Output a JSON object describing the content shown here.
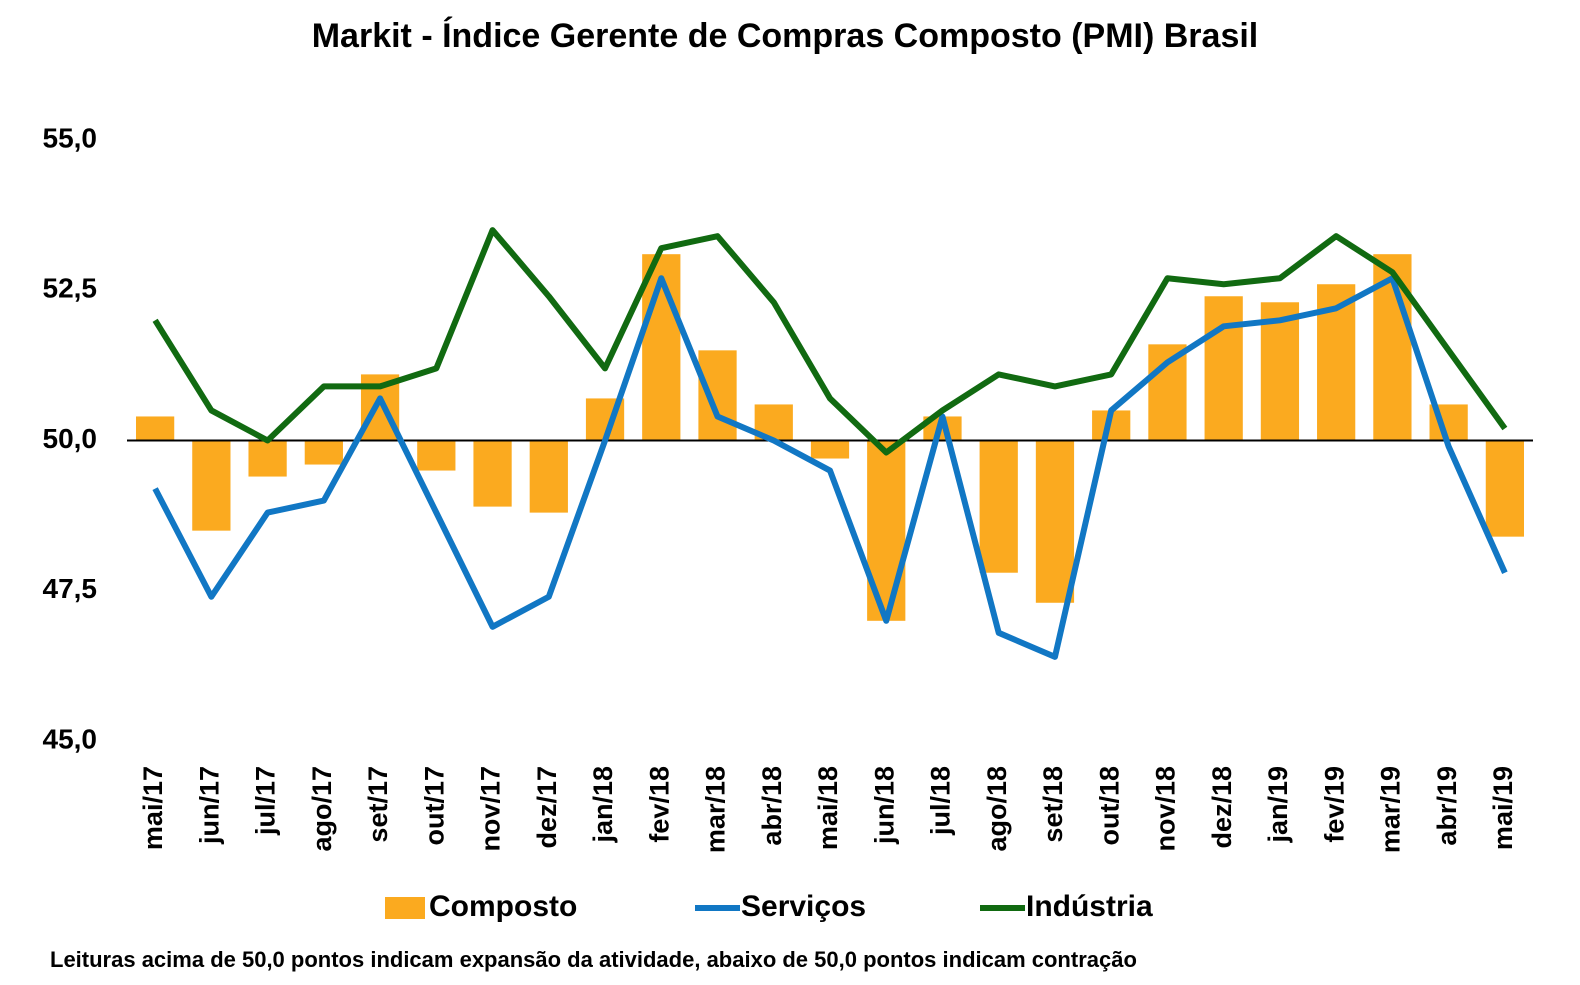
{
  "chart_data": {
    "type": "combo",
    "title": "Markit - Índice Gerente de Compras Composto (PMI) Brasil",
    "footnote": "Leituras acima de 50,0 pontos indicam expansão da atividade, abaixo de 50,0 pontos indicam contração",
    "categories": [
      "mai/17",
      "jun/17",
      "jul/17",
      "ago/17",
      "set/17",
      "out/17",
      "nov/17",
      "dez/17",
      "jan/18",
      "fev/18",
      "mar/18",
      "abr/18",
      "mai/18",
      "jun/18",
      "jul/18",
      "ago/18",
      "set/18",
      "out/18",
      "nov/18",
      "dez/18",
      "jan/19",
      "fev/19",
      "mar/19",
      "abr/19",
      "mai/19"
    ],
    "series": [
      {
        "name": "Composto",
        "type": "bar",
        "color": "#FBAA1F",
        "values": [
          50.4,
          48.5,
          49.4,
          49.6,
          51.1,
          49.5,
          48.9,
          48.8,
          50.7,
          53.1,
          51.5,
          50.6,
          49.7,
          47.0,
          50.4,
          47.8,
          47.3,
          50.5,
          51.6,
          52.4,
          52.3,
          52.6,
          53.1,
          50.6,
          48.4
        ]
      },
      {
        "name": "Serviços",
        "type": "line",
        "color": "#1177C4",
        "values": [
          49.2,
          47.4,
          48.8,
          49.0,
          50.7,
          48.8,
          46.9,
          47.4,
          50.0,
          52.7,
          50.4,
          50.0,
          49.5,
          47.0,
          50.4,
          46.8,
          46.4,
          50.5,
          51.3,
          51.9,
          52.0,
          52.2,
          52.7,
          49.9,
          47.8
        ]
      },
      {
        "name": "Indústria",
        "type": "line",
        "color": "#116A11",
        "values": [
          52.0,
          50.5,
          50.0,
          50.9,
          50.9,
          51.2,
          53.5,
          52.4,
          51.2,
          53.2,
          53.4,
          52.3,
          50.7,
          49.8,
          50.5,
          51.1,
          50.9,
          51.1,
          52.7,
          52.6,
          52.7,
          53.4,
          52.8,
          51.5,
          50.2
        ]
      }
    ],
    "ylim": [
      45,
      55
    ],
    "yticks": [
      {
        "value": 45,
        "label": "45,0"
      },
      {
        "value": 47.5,
        "label": "47,5"
      },
      {
        "value": 50,
        "label": "50,0"
      },
      {
        "value": 52.5,
        "label": "52,5"
      },
      {
        "value": 55,
        "label": "55,0"
      }
    ],
    "x_axis_at": 50,
    "grid": false,
    "legend": "bottom"
  }
}
